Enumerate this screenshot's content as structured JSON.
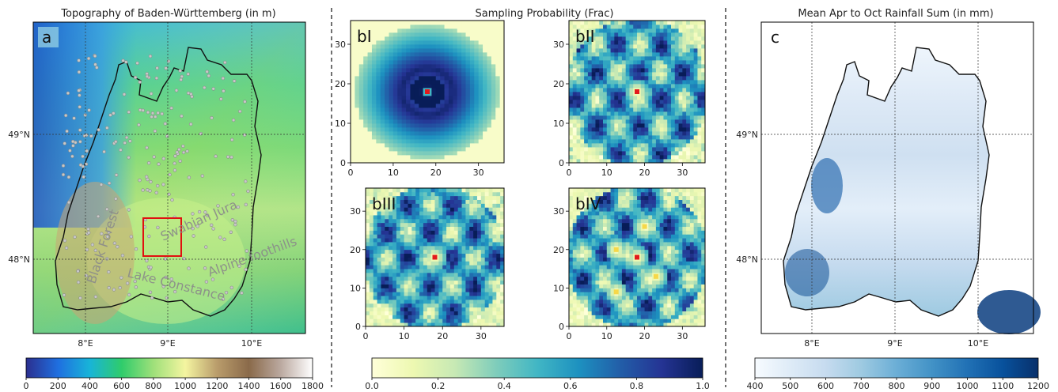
{
  "chart_data": [
    {
      "type": "heatmap",
      "panel": "a",
      "title": "Topography of Baden-Württemberg (in m)",
      "x_ticks": [
        "8°E",
        "9°E",
        "10°E"
      ],
      "y_ticks": [
        "49°N",
        "48°N"
      ],
      "annotations": [
        "Black Forest",
        "Swabian Jura",
        "Lake Constance",
        "Alpine foothills"
      ],
      "colorbar": {
        "ticks": [
          "0",
          "200",
          "400",
          "600",
          "800",
          "1000",
          "1200",
          "1400",
          "1600",
          "1800"
        ],
        "range": [
          0,
          1800
        ],
        "colors": [
          "#2b2f8f",
          "#1f6fe0",
          "#18b4d8",
          "#2fcc6b",
          "#9fe07a",
          "#f4f5a0",
          "#b99c6b",
          "#8a6a4a",
          "#bba9a0",
          "#ffffff"
        ]
      },
      "highlight_box_color": "#e01010"
    },
    {
      "type": "heatmap",
      "title": "Sampling Probability (Frac)",
      "panels": [
        {
          "label": "bI",
          "pattern": "rings",
          "centers": [
            [
              18,
              18
            ]
          ]
        },
        {
          "label": "bII",
          "pattern": "terrain",
          "centers": [
            [
              18,
              18
            ]
          ]
        },
        {
          "label": "bIII",
          "pattern": "terrain",
          "centers": [
            [
              18,
              18
            ]
          ]
        },
        {
          "label": "bIV",
          "pattern": "terrain",
          "centers": [
            [
              18,
              18
            ],
            [
              12.5,
              20
            ],
            [
              20,
              26
            ],
            [
              23,
              13
            ],
            [
              12.5,
              9
            ]
          ]
        }
      ],
      "x_ticks": [
        "0",
        "10",
        "20",
        "30"
      ],
      "y_ticks": [
        "0",
        "10",
        "20",
        "30"
      ],
      "xlim": [
        0,
        36
      ],
      "ylim": [
        0,
        36
      ],
      "colorbar": {
        "ticks": [
          "0.0",
          "0.2",
          "0.4",
          "0.6",
          "0.8",
          "1.0"
        ],
        "range": [
          0,
          1
        ],
        "colors": [
          "#ffffd9",
          "#edf8b1",
          "#c7e9b4",
          "#7fcdbb",
          "#41b6c4",
          "#1d91c0",
          "#225ea8",
          "#253494",
          "#081d58"
        ]
      },
      "center_color": "#e31a1c",
      "secondary_center_color": "#f6d84a"
    },
    {
      "type": "heatmap",
      "panel": "c",
      "title": "Mean Apr to Oct Rainfall Sum (in mm)",
      "x_ticks": [
        "8°E",
        "9°E",
        "10°E"
      ],
      "y_ticks": [
        "49°N",
        "48°N"
      ],
      "colorbar": {
        "ticks": [
          "400",
          "500",
          "600",
          "700",
          "800",
          "900",
          "1000",
          "1100",
          "1200"
        ],
        "range": [
          400,
          1200
        ],
        "colors": [
          "#f7fbff",
          "#deebf7",
          "#c6dbef",
          "#9ecae1",
          "#6baed6",
          "#4292c6",
          "#2171b5",
          "#08519c",
          "#08306b"
        ]
      }
    }
  ]
}
